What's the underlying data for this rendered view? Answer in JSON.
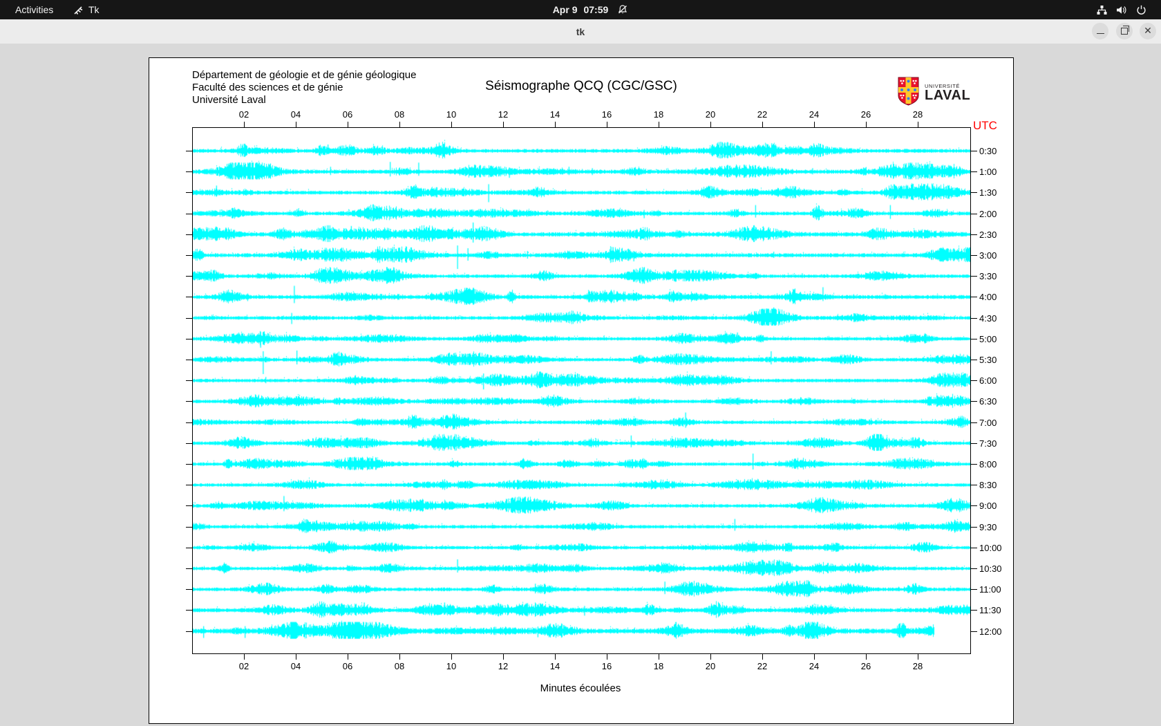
{
  "top_bar": {
    "activities_label": "Activities",
    "app_name": "Tk",
    "clock": {
      "date": "Apr 9",
      "time": "07:59"
    },
    "icons": [
      "tk-icon",
      "notifications-disabled-icon",
      "network-wired-icon",
      "volume-icon",
      "power-icon"
    ]
  },
  "title_bar": {
    "title": "tk",
    "buttons": [
      "minimize",
      "maximize",
      "close"
    ]
  },
  "plot": {
    "header_lines": [
      "Département de géologie et de génie géologique",
      "Faculté des sciences et de génie",
      "Université Laval"
    ],
    "title": "Séismographe QCQ (CGC/GSC)",
    "utc_label": "UTC",
    "xlabel": "Minutes écoulées",
    "x_ticks": [
      "02",
      "04",
      "06",
      "08",
      "10",
      "12",
      "14",
      "16",
      "18",
      "20",
      "22",
      "24",
      "26",
      "28"
    ],
    "y_labels": [
      "0:30",
      "1:00",
      "1:30",
      "2:00",
      "2:30",
      "3:00",
      "3:30",
      "4:00",
      "4:30",
      "5:00",
      "5:30",
      "6:00",
      "6:30",
      "7:00",
      "7:30",
      "8:00",
      "8:30",
      "9:00",
      "9:30",
      "10:00",
      "10:30",
      "11:00",
      "11:30",
      "12:00"
    ],
    "logo": {
      "line1": "UNIVERSITÉ",
      "line2": "LAVAL"
    },
    "colors": {
      "trace": "#00ffff",
      "utc": "#ff0000",
      "logo_red": "#e8112d",
      "logo_gold": "#ffc72c",
      "logo_blue": "#2f7df6"
    },
    "axis": {
      "x_min": 0,
      "x_max": 30,
      "minutes_per_tick": 2,
      "rows": 24,
      "row_interval_minutes": 30
    },
    "traces": [
      {
        "base": 1.9,
        "end": 30,
        "spikes": [
          [
            5.2,
            9,
            5,
            2
          ],
          [
            22.2,
            6,
            4,
            12
          ],
          [
            23.3,
            5,
            4,
            8
          ]
        ]
      },
      {
        "base": 2.0,
        "end": 30,
        "spikes": [
          [
            5.3,
            7,
            5,
            2
          ],
          [
            7.6,
            14,
            7,
            2
          ],
          [
            8.7,
            13,
            6,
            2
          ],
          [
            12.2,
            6,
            9,
            2
          ],
          [
            14.5,
            7,
            5,
            2
          ],
          [
            15.4,
            5,
            5,
            2
          ],
          [
            19.4,
            6,
            5,
            2
          ],
          [
            23.9,
            5,
            4,
            2
          ],
          [
            26.8,
            6,
            5,
            9
          ],
          [
            28.4,
            7,
            6,
            10
          ]
        ]
      },
      {
        "base": 1.9,
        "end": 30,
        "spikes": [
          [
            0.9,
            10,
            6,
            2
          ],
          [
            11.4,
            12,
            14,
            2
          ],
          [
            13.4,
            6,
            5,
            7
          ],
          [
            23.2,
            6,
            5,
            3
          ]
        ]
      },
      {
        "base": 1.8,
        "end": 30,
        "spikes": [
          [
            4.0,
            6,
            5,
            2
          ],
          [
            6.9,
            6,
            5,
            5
          ],
          [
            17.4,
            5,
            7,
            2
          ],
          [
            21.7,
            12,
            6,
            2
          ],
          [
            24.1,
            13,
            10,
            4
          ],
          [
            26.9,
            12,
            8,
            2
          ]
        ]
      },
      {
        "base": 2.2,
        "end": 30,
        "spikes": [
          [
            1.2,
            6,
            4,
            10
          ],
          [
            3.4,
            6,
            5,
            2
          ],
          [
            5.2,
            7,
            5,
            5
          ],
          [
            6.1,
            12,
            7,
            2
          ],
          [
            10.8,
            17,
            12,
            2
          ],
          [
            11.3,
            7,
            5,
            2
          ],
          [
            22.9,
            5,
            4,
            2
          ],
          [
            26.6,
            6,
            5,
            8
          ]
        ]
      },
      {
        "base": 2.0,
        "end": 30,
        "spikes": [
          [
            10.2,
            14,
            20,
            2
          ],
          [
            10.6,
            10,
            8,
            2
          ],
          [
            12.9,
            6,
            5,
            2
          ],
          [
            17.0,
            6,
            9,
            2
          ],
          [
            22.4,
            5,
            4,
            2
          ]
        ]
      },
      {
        "base": 1.7,
        "end": 30,
        "spikes": [
          [
            0.8,
            6,
            5,
            6
          ],
          [
            2.5,
            4,
            3,
            2
          ],
          [
            23.5,
            4,
            3,
            2
          ]
        ]
      },
      {
        "base": 2.0,
        "end": 30,
        "spikes": [
          [
            2.1,
            5,
            6,
            2
          ],
          [
            3.9,
            16,
            9,
            2
          ],
          [
            9.2,
            6,
            5,
            2
          ],
          [
            24.3,
            14,
            6,
            2
          ],
          [
            26.7,
            4,
            3,
            2
          ]
        ]
      },
      {
        "base": 1.7,
        "end": 30,
        "spikes": [
          [
            3.8,
            7,
            9,
            2
          ],
          [
            22.4,
            15,
            6,
            2
          ]
        ]
      },
      {
        "base": 1.7,
        "end": 30,
        "spikes": [
          [
            2.6,
            10,
            13,
            2
          ],
          [
            21.0,
            9,
            6,
            2
          ]
        ]
      },
      {
        "base": 1.7,
        "end": 30,
        "spikes": [
          [
            2.7,
            12,
            21,
            2
          ],
          [
            4.0,
            13,
            7,
            2
          ],
          [
            22.3,
            12,
            7,
            2
          ]
        ]
      },
      {
        "base": 1.7,
        "end": 30,
        "spikes": [
          [
            2.8,
            5,
            4,
            2
          ],
          [
            11.2,
            10,
            13,
            2
          ]
        ]
      },
      {
        "base": 1.6,
        "end": 30,
        "spikes": [
          [
            14.0,
            3,
            3,
            2
          ]
        ]
      },
      {
        "base": 1.7,
        "end": 30,
        "spikes": [
          [
            19.0,
            14,
            8,
            2
          ]
        ]
      },
      {
        "base": 1.7,
        "end": 30,
        "spikes": [
          [
            16.9,
            11,
            6,
            2
          ],
          [
            26.4,
            5,
            4,
            6
          ]
        ]
      },
      {
        "base": 1.7,
        "end": 30,
        "spikes": [
          [
            21.6,
            15,
            8,
            2
          ]
        ]
      },
      {
        "base": 1.6,
        "end": 30,
        "spikes": []
      },
      {
        "base": 1.7,
        "end": 30,
        "spikes": [
          [
            3.5,
            14,
            8,
            2
          ]
        ]
      },
      {
        "base": 1.7,
        "end": 30,
        "spikes": [
          [
            20.9,
            11,
            6,
            2
          ]
        ]
      },
      {
        "base": 1.6,
        "end": 30,
        "spikes": []
      },
      {
        "base": 1.7,
        "end": 30,
        "spikes": [
          [
            10.2,
            13,
            6,
            2
          ]
        ]
      },
      {
        "base": 1.8,
        "end": 30,
        "spikes": [
          [
            13.2,
            8,
            6,
            2
          ],
          [
            18.2,
            11,
            7,
            2
          ],
          [
            19.8,
            9,
            6,
            2
          ]
        ]
      },
      {
        "base": 2.0,
        "end": 30,
        "spikes": [
          [
            6.6,
            11,
            6,
            2
          ],
          [
            9.7,
            11,
            6,
            2
          ],
          [
            12.9,
            9,
            6,
            2
          ],
          [
            15.1,
            6,
            8,
            2
          ],
          [
            20.8,
            6,
            5,
            9
          ]
        ]
      },
      {
        "base": 2.6,
        "end": 28.6,
        "spikes": [
          [
            0.4,
            7,
            10,
            2
          ],
          [
            2.0,
            7,
            10,
            2
          ],
          [
            5.5,
            6,
            4,
            6
          ],
          [
            13.3,
            6,
            9,
            2
          ],
          [
            21.5,
            5,
            4,
            10
          ],
          [
            23.0,
            5,
            4,
            4
          ]
        ]
      }
    ]
  }
}
